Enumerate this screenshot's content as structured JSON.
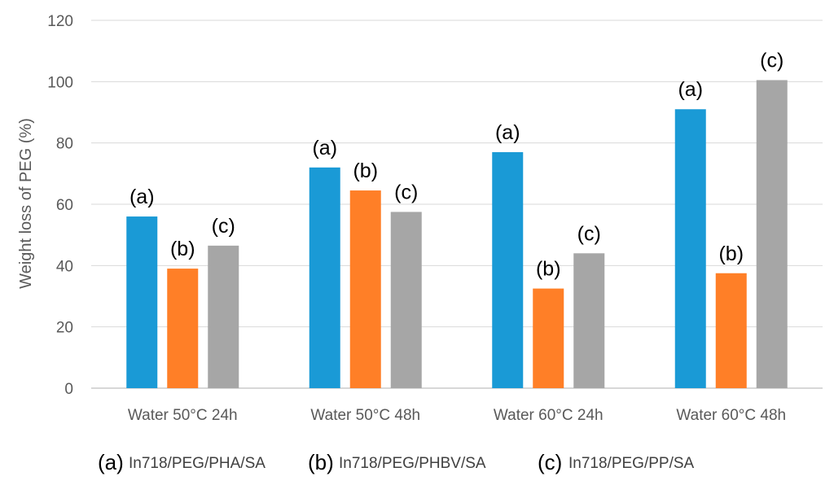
{
  "chart_data": {
    "type": "bar",
    "title": "",
    "xlabel": "",
    "ylabel": "Weight loss of PEG (%)",
    "ylim": [
      0,
      120
    ],
    "yticks": [
      0,
      20,
      40,
      60,
      80,
      100,
      120
    ],
    "grid": true,
    "categories": [
      "Water 50°C 24h",
      "Water 50°C 48h",
      "Water 60°C 24h",
      "Water 60°C 48h"
    ],
    "series": [
      {
        "key": "(a)",
        "name": "In718/PEG/PHA/SA",
        "color": "#1a9ad6",
        "values": [
          56,
          72,
          77,
          91
        ]
      },
      {
        "key": "(b)",
        "name": "In718/PEG/PHBV/SA",
        "color": "#ff7f27",
        "values": [
          39,
          64.5,
          32.5,
          37.5
        ]
      },
      {
        "key": "(c)",
        "name": "In718/PEG/PP/SA",
        "color": "#a6a6a6",
        "values": [
          46.5,
          57.5,
          44,
          100.5
        ]
      }
    ],
    "legend_position": "bottom"
  }
}
